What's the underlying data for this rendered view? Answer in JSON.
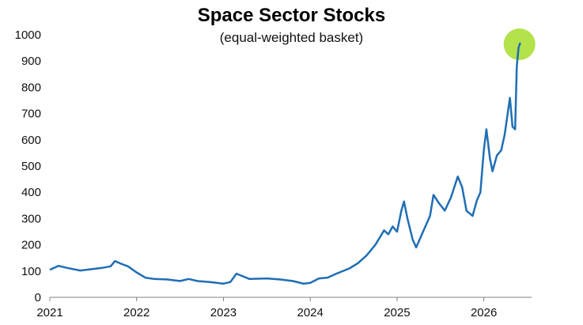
{
  "chart_data": {
    "type": "line",
    "title": "Space Sector Stocks",
    "subtitle": "(equal-weighted basket)",
    "xlabel": "",
    "ylabel": "",
    "x_ticks": [
      "2021",
      "2022",
      "2023",
      "2024",
      "2025",
      "2026"
    ],
    "y_ticks": [
      "0",
      "100",
      "200",
      "300",
      "400",
      "500",
      "600",
      "700",
      "800",
      "900",
      "1000"
    ],
    "xlim": [
      2021.0,
      2026.55
    ],
    "ylim": [
      0,
      1000
    ],
    "grid": false,
    "legend": "none",
    "line_color": "#1f6eb5",
    "highlight_color": "#a6dd2b",
    "series": [
      {
        "x": [
          2021.0,
          2021.1,
          2021.2,
          2021.35,
          2021.5,
          2021.6,
          2021.7,
          2021.75,
          2021.82,
          2021.9,
          2022.0,
          2022.1,
          2022.2,
          2022.35,
          2022.5,
          2022.6,
          2022.7,
          2022.85,
          2023.0,
          2023.08,
          2023.15,
          2023.3,
          2023.5,
          2023.65,
          2023.8,
          2023.92,
          2024.0,
          2024.1,
          2024.2,
          2024.3,
          2024.45,
          2024.55,
          2024.65,
          2024.75,
          2024.85,
          2024.9,
          2024.95,
          2025.0,
          2025.05,
          2025.08,
          2025.12,
          2025.18,
          2025.22,
          2025.3,
          2025.38,
          2025.42,
          2025.48,
          2025.55,
          2025.62,
          2025.7,
          2025.75,
          2025.8,
          2025.87,
          2025.92,
          2025.96,
          2026.0,
          2026.03,
          2026.07,
          2026.1,
          2026.15,
          2026.2,
          2026.24,
          2026.27,
          2026.3,
          2026.33,
          2026.36,
          2026.38,
          2026.4,
          2026.42
        ],
        "values": [
          105,
          120,
          112,
          102,
          108,
          112,
          118,
          138,
          128,
          118,
          95,
          75,
          70,
          68,
          62,
          70,
          62,
          58,
          52,
          58,
          90,
          70,
          72,
          68,
          62,
          52,
          55,
          72,
          75,
          90,
          110,
          130,
          160,
          200,
          255,
          240,
          270,
          250,
          330,
          365,
          300,
          220,
          190,
          250,
          310,
          390,
          360,
          330,
          380,
          460,
          420,
          330,
          310,
          370,
          400,
          560,
          640,
          530,
          480,
          540,
          560,
          620,
          690,
          760,
          650,
          640,
          880,
          950,
          970
        ]
      }
    ]
  }
}
